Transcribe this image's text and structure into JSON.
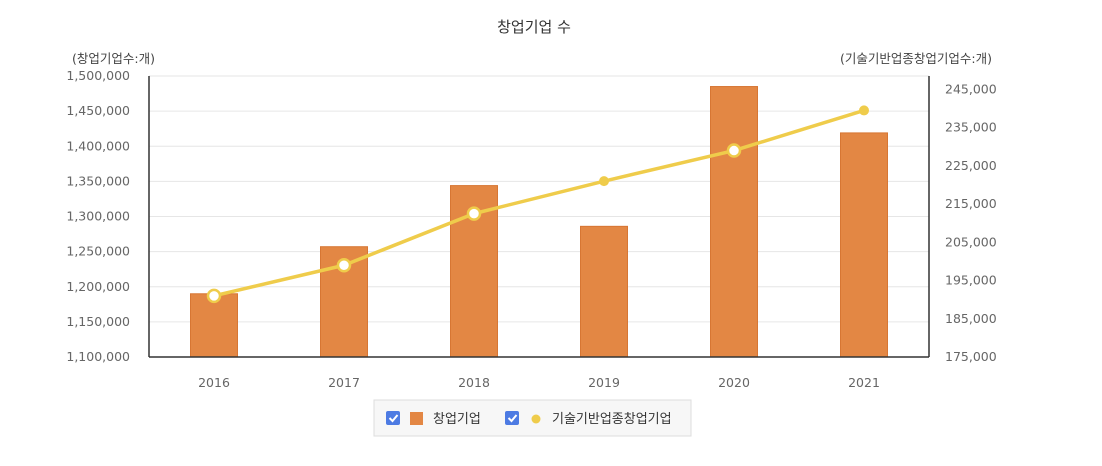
{
  "chart_data": {
    "type": "bar",
    "title": "창업기업 수",
    "y_left_unit": "(창업기업수:개)",
    "y_right_unit": "(기술기반업종창업기업수:개)",
    "categories": [
      "2016",
      "2017",
      "2018",
      "2019",
      "2020",
      "2021"
    ],
    "y_left_ticks": [
      "1,100,000",
      "1,150,000",
      "1,200,000",
      "1,250,000",
      "1,300,000",
      "1,350,000",
      "1,400,000",
      "1,450,000",
      "1,500,000"
    ],
    "y_right_ticks": [
      "175,000",
      "185,000",
      "195,000",
      "205,000",
      "215,000",
      "225,000",
      "235,000",
      "245,000"
    ],
    "y_left_range": [
      1100000,
      1500000
    ],
    "y_right_range": [
      175000,
      248500
    ],
    "series": [
      {
        "name": "창업기업",
        "type": "bar",
        "axis": "left",
        "color": "#e38744",
        "values": [
          1190000,
          1257000,
          1344000,
          1286000,
          1485000,
          1419000
        ]
      },
      {
        "name": "기술기반업종창업기업",
        "type": "line",
        "axis": "right",
        "color": "#efcc4b",
        "values": [
          191000,
          199000,
          212500,
          221000,
          229000,
          239500
        ],
        "hollow_markers": [
          true,
          true,
          true,
          false,
          true,
          false
        ]
      }
    ],
    "legend_position": "bottom",
    "legend_checked": [
      true,
      true
    ],
    "grid": true
  }
}
